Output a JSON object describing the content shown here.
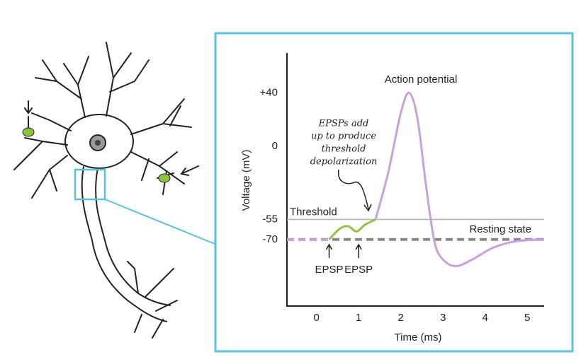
{
  "chart_data": {
    "type": "line",
    "x_label": "Time (ms)",
    "y_label": "Voltage (mV)",
    "xlim": [
      -0.7,
      5.4
    ],
    "xticks": [
      0,
      1,
      2,
      3,
      4,
      5
    ],
    "ylim": [
      -120,
      70
    ],
    "yticks": [
      {
        "value": 40,
        "label": "+40"
      },
      0,
      -55,
      -70
    ],
    "reference_lines": [
      {
        "value": -55,
        "label": "Threshold",
        "color": "#b0b0b0",
        "dashed": false
      },
      {
        "value": -70,
        "label": "Resting state",
        "color": "#8a8a8a",
        "dashed": true
      }
    ],
    "series": [
      {
        "color": "#c9a0dc",
        "dashed": true,
        "x": [
          -0.7,
          0.3
        ],
        "values": [
          -70,
          -70
        ]
      },
      {
        "color": "#8cc63f",
        "dashed": false,
        "x": [
          0.3,
          0.55,
          0.75,
          0.95,
          1.15,
          1.4
        ],
        "values": [
          -70,
          -62,
          -60,
          -64,
          -59,
          -55
        ]
      },
      {
        "color": "#c9a0dc",
        "dashed": false,
        "x": [
          1.4,
          1.7,
          2.0,
          2.2,
          2.4,
          2.6,
          2.8,
          3.0,
          3.3,
          3.7,
          4.2,
          4.8,
          5.4
        ],
        "values": [
          -55,
          -20,
          25,
          40,
          20,
          -30,
          -72,
          -85,
          -90,
          -85,
          -76,
          -71,
          -70
        ]
      },
      {
        "color": "#c9a0dc",
        "dashed": true,
        "x": [
          4.8,
          5.4
        ],
        "values": [
          -71,
          -70
        ]
      }
    ],
    "annotations": {
      "peak": "Action potential",
      "note": [
        "EPSPs add",
        "up to produce",
        "threshold",
        "depolarization"
      ],
      "epsp": [
        {
          "x": 0.3,
          "label": "EPSP"
        },
        {
          "x": 1.0,
          "label": "EPSP"
        }
      ]
    }
  }
}
